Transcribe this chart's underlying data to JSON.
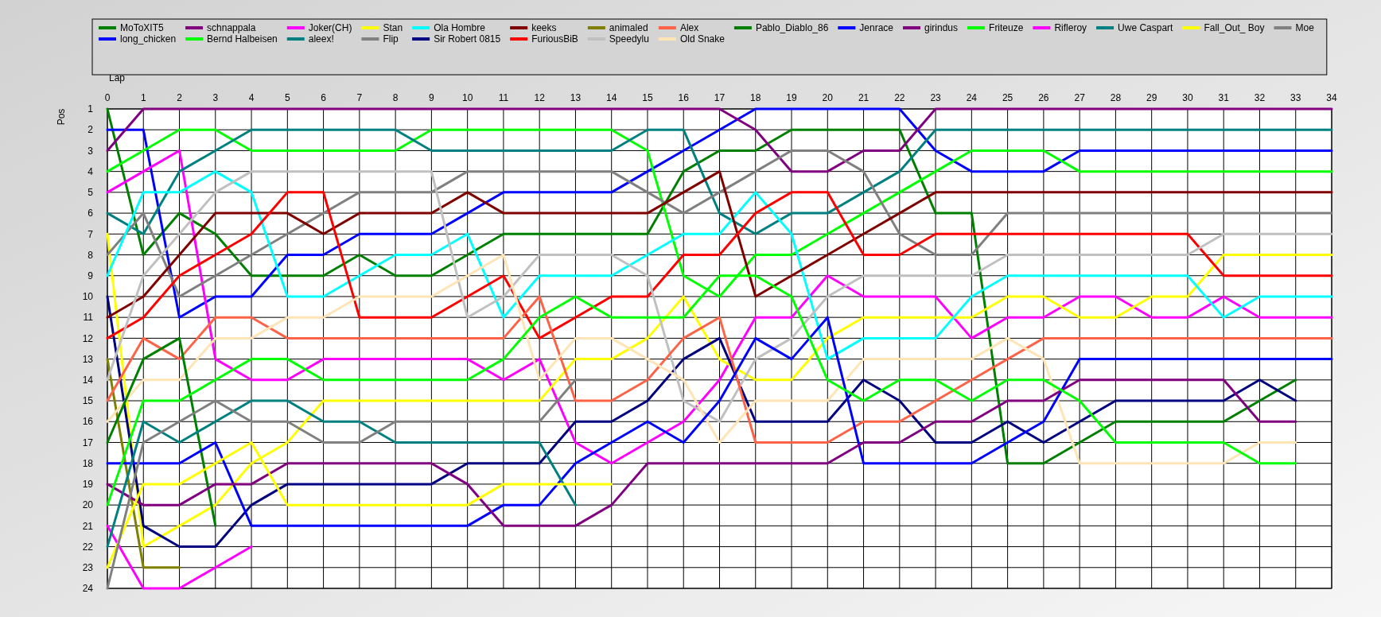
{
  "chart_data": {
    "type": "line",
    "xlabel": "Lap",
    "ylabel": "Pos",
    "x": [
      0,
      1,
      2,
      3,
      4,
      5,
      6,
      7,
      8,
      9,
      10,
      11,
      12,
      13,
      14,
      15,
      16,
      17,
      18,
      19,
      20,
      21,
      22,
      23,
      24,
      25,
      26,
      27,
      28,
      29,
      30,
      31,
      32,
      33,
      34
    ],
    "xlim": [
      0,
      34
    ],
    "xticks": [
      0,
      1,
      2,
      3,
      4,
      5,
      6,
      7,
      8,
      9,
      10,
      11,
      12,
      13,
      14,
      15,
      16,
      17,
      18,
      19,
      20,
      21,
      22,
      23,
      24,
      25,
      26,
      27,
      28,
      29,
      30,
      31,
      32,
      33,
      34
    ],
    "ylim": [
      24,
      1
    ],
    "yticks": [
      1,
      2,
      3,
      4,
      5,
      6,
      7,
      8,
      9,
      10,
      11,
      12,
      13,
      14,
      15,
      16,
      17,
      18,
      19,
      20,
      21,
      22,
      23,
      24
    ],
    "grid": true,
    "legend": "top",
    "series": [
      {
        "name": "MoToXIT5",
        "color": "#008000",
        "values": [
          1,
          8,
          6,
          7,
          9,
          9,
          9,
          8,
          9,
          9,
          8,
          7,
          7,
          7,
          7,
          7,
          4,
          3,
          3,
          2,
          2,
          2,
          2,
          6,
          6,
          18,
          18,
          17,
          16,
          16,
          16,
          16,
          15,
          14,
          null
        ]
      },
      {
        "name": "long_chicken",
        "color": "#0000ff",
        "values": [
          2,
          2,
          11,
          10,
          10,
          8,
          8,
          7,
          7,
          7,
          6,
          5,
          5,
          5,
          5,
          4,
          3,
          2,
          1,
          1,
          1,
          1,
          1,
          3,
          4,
          4,
          4,
          3,
          3,
          3,
          3,
          3,
          3,
          3,
          3
        ]
      },
      {
        "name": "schnappala",
        "color": "#800080",
        "values": [
          3,
          1,
          1,
          1,
          1,
          1,
          1,
          1,
          1,
          1,
          1,
          1,
          1,
          1,
          1,
          1,
          1,
          1,
          2,
          4,
          4,
          3,
          3,
          1,
          1,
          1,
          1,
          1,
          1,
          1,
          1,
          1,
          1,
          1,
          1
        ]
      },
      {
        "name": "Bernd Halbeisen",
        "color": "#00ff00",
        "values": [
          4,
          3,
          2,
          2,
          3,
          3,
          3,
          3,
          3,
          2,
          2,
          2,
          2,
          2,
          2,
          3,
          9,
          10,
          8,
          8,
          7,
          6,
          5,
          4,
          3,
          3,
          3,
          4,
          4,
          4,
          4,
          4,
          4,
          4,
          4
        ]
      },
      {
        "name": "Joker(CH)",
        "color": "#ff00ff",
        "values": [
          5,
          4,
          3,
          13,
          14,
          14,
          13,
          13,
          13,
          13,
          13,
          14,
          13,
          17,
          18,
          17,
          16,
          14,
          11,
          11,
          9,
          10,
          10,
          10,
          12,
          11,
          11,
          10,
          10,
          11,
          11,
          10,
          11,
          11,
          11
        ]
      },
      {
        "name": "aleex!",
        "color": "#008080",
        "values": [
          6,
          7,
          4,
          3,
          2,
          2,
          2,
          2,
          2,
          3,
          3,
          3,
          3,
          3,
          3,
          2,
          2,
          6,
          7,
          6,
          6,
          5,
          4,
          2,
          2,
          2,
          2,
          2,
          2,
          2,
          2,
          2,
          2,
          2,
          2
        ]
      },
      {
        "name": "Stan",
        "color": "#ffff00",
        "values": [
          7,
          22,
          21,
          20,
          18,
          17,
          15,
          15,
          15,
          15,
          15,
          15,
          15,
          13,
          13,
          12,
          10,
          13,
          14,
          14,
          12,
          11,
          11,
          11,
          11,
          10,
          10,
          11,
          11,
          10,
          10,
          8,
          8,
          8,
          8
        ]
      },
      {
        "name": "Flip",
        "color": "#808080",
        "values": [
          8,
          6,
          10,
          9,
          8,
          7,
          6,
          5,
          5,
          5,
          4,
          4,
          4,
          4,
          4,
          5,
          6,
          5,
          4,
          3,
          3,
          4,
          7,
          8,
          8,
          6,
          6,
          6,
          6,
          6,
          6,
          6,
          6,
          6,
          6
        ]
      },
      {
        "name": "Ola Hombre",
        "color": "#00ffff",
        "values": [
          9,
          5,
          5,
          4,
          5,
          10,
          10,
          9,
          8,
          8,
          7,
          11,
          9,
          9,
          9,
          8,
          7,
          7,
          5,
          7,
          13,
          12,
          12,
          12,
          10,
          9,
          9,
          9,
          9,
          9,
          9,
          11,
          10,
          10,
          10
        ]
      },
      {
        "name": "Sir Robert 0815",
        "color": "#000080",
        "values": [
          10,
          21,
          22,
          22,
          20,
          19,
          19,
          19,
          19,
          19,
          18,
          18,
          18,
          16,
          16,
          15,
          13,
          12,
          16,
          16,
          16,
          14,
          15,
          17,
          17,
          16,
          17,
          16,
          15,
          15,
          15,
          15,
          14,
          15,
          null
        ]
      },
      {
        "name": "keeks",
        "color": "#800000",
        "values": [
          11,
          10,
          8,
          6,
          6,
          6,
          7,
          6,
          6,
          6,
          5,
          6,
          6,
          6,
          6,
          6,
          5,
          4,
          10,
          9,
          8,
          7,
          6,
          5,
          5,
          5,
          5,
          5,
          5,
          5,
          5,
          5,
          5,
          5,
          5
        ]
      },
      {
        "name": "FuriousBiB",
        "color": "#ff0000",
        "values": [
          12,
          11,
          9,
          8,
          7,
          5,
          5,
          11,
          11,
          11,
          10,
          9,
          12,
          11,
          10,
          10,
          8,
          8,
          6,
          5,
          5,
          8,
          8,
          7,
          7,
          7,
          7,
          7,
          7,
          7,
          7,
          9,
          9,
          9,
          9
        ]
      },
      {
        "name": "animaled",
        "color": "#808000",
        "values": [
          13,
          23,
          23,
          null,
          null,
          null,
          null,
          null,
          null,
          null,
          null,
          null,
          null,
          null,
          null,
          null,
          null,
          null,
          null,
          null,
          null,
          null,
          null,
          null,
          null,
          null,
          null,
          null,
          null,
          null,
          null,
          null,
          null,
          null,
          null
        ]
      },
      {
        "name": "Speedylu",
        "color": "#c0c0c0",
        "values": [
          14,
          9,
          7,
          5,
          4,
          4,
          4,
          4,
          4,
          4,
          11,
          10,
          8,
          8,
          8,
          9,
          15,
          16,
          13,
          12,
          10,
          9,
          9,
          9,
          9,
          8,
          8,
          8,
          8,
          8,
          8,
          7,
          7,
          7,
          7
        ]
      },
      {
        "name": "Alex",
        "color": "#ff6347",
        "values": [
          15,
          12,
          13,
          11,
          11,
          12,
          12,
          12,
          12,
          12,
          12,
          12,
          10,
          15,
          15,
          14,
          12,
          11,
          17,
          17,
          17,
          16,
          16,
          15,
          14,
          13,
          12,
          12,
          12,
          12,
          12,
          12,
          12,
          12,
          12
        ]
      },
      {
        "name": "Old Snake",
        "color": "#ffe4b5",
        "values": [
          16,
          14,
          14,
          12,
          12,
          11,
          11,
          10,
          10,
          10,
          9,
          8,
          14,
          12,
          12,
          13,
          14,
          17,
          15,
          15,
          15,
          13,
          13,
          13,
          13,
          12,
          13,
          18,
          18,
          18,
          18,
          18,
          17,
          17,
          null
        ]
      },
      {
        "name": "Pablo_Diablo_86",
        "color": "#008000",
        "values": [
          17,
          13,
          12,
          21,
          null,
          null,
          null,
          null,
          null,
          null,
          null,
          null,
          null,
          null,
          null,
          null,
          null,
          null,
          null,
          null,
          null,
          null,
          null,
          null,
          null,
          null,
          null,
          null,
          null,
          null,
          null,
          null,
          null,
          null,
          null
        ]
      },
      {
        "name": "Jenrace",
        "color": "#0000ff",
        "values": [
          18,
          18,
          18,
          17,
          21,
          21,
          21,
          21,
          21,
          21,
          21,
          20,
          20,
          18,
          17,
          16,
          17,
          15,
          12,
          13,
          11,
          18,
          18,
          18,
          18,
          17,
          16,
          13,
          13,
          13,
          13,
          13,
          13,
          13,
          13
        ]
      },
      {
        "name": "girindus",
        "color": "#800080",
        "values": [
          19,
          20,
          20,
          19,
          19,
          18,
          18,
          18,
          18,
          18,
          19,
          21,
          21,
          21,
          20,
          18,
          18,
          18,
          18,
          18,
          18,
          17,
          17,
          16,
          16,
          15,
          15,
          14,
          14,
          14,
          14,
          14,
          16,
          16,
          null
        ]
      },
      {
        "name": "Friteuze",
        "color": "#00ff00",
        "values": [
          20,
          15,
          15,
          14,
          13,
          13,
          14,
          14,
          14,
          14,
          14,
          13,
          11,
          10,
          11,
          11,
          11,
          9,
          9,
          10,
          14,
          15,
          14,
          14,
          15,
          14,
          14,
          15,
          17,
          17,
          17,
          17,
          18,
          18,
          null
        ]
      },
      {
        "name": "Rifleroy",
        "color": "#ff00ff",
        "values": [
          21,
          24,
          24,
          23,
          22,
          null,
          null,
          null,
          null,
          null,
          null,
          null,
          null,
          null,
          null,
          null,
          null,
          null,
          null,
          null,
          null,
          null,
          null,
          null,
          null,
          null,
          null,
          null,
          null,
          null,
          null,
          null,
          null,
          null,
          null
        ]
      },
      {
        "name": "Uwe Caspart",
        "color": "#008080",
        "values": [
          22,
          16,
          17,
          16,
          15,
          15,
          16,
          16,
          17,
          17,
          17,
          17,
          17,
          20,
          null,
          null,
          null,
          null,
          null,
          null,
          null,
          null,
          null,
          null,
          null,
          null,
          null,
          null,
          null,
          null,
          null,
          null,
          null,
          null,
          null
        ]
      },
      {
        "name": "Fall_Out_ Boy",
        "color": "#ffff00",
        "values": [
          23,
          19,
          19,
          18,
          17,
          20,
          20,
          20,
          20,
          20,
          20,
          19,
          19,
          19,
          19,
          null,
          null,
          null,
          null,
          null,
          null,
          null,
          null,
          null,
          null,
          null,
          null,
          null,
          null,
          null,
          null,
          null,
          null,
          null,
          null
        ]
      },
      {
        "name": "Moe",
        "color": "#808080",
        "values": [
          24,
          17,
          16,
          15,
          16,
          16,
          17,
          17,
          16,
          16,
          16,
          16,
          16,
          14,
          14,
          null,
          null,
          null,
          null,
          null,
          null,
          null,
          null,
          null,
          null,
          null,
          null,
          null,
          null,
          null,
          null,
          null,
          null,
          null,
          null
        ]
      }
    ]
  }
}
